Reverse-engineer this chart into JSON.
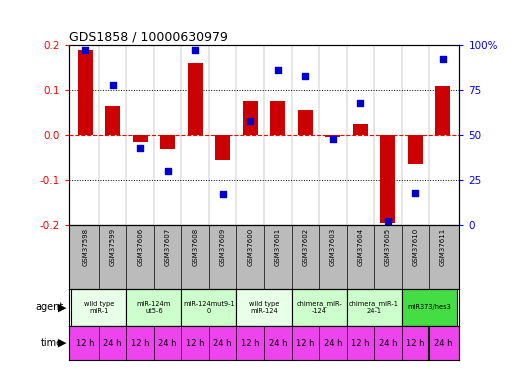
{
  "title": "GDS1858 / 10000630979",
  "samples": [
    "GSM37598",
    "GSM37599",
    "GSM37606",
    "GSM37607",
    "GSM37608",
    "GSM37609",
    "GSM37600",
    "GSM37601",
    "GSM37602",
    "GSM37603",
    "GSM37604",
    "GSM37605",
    "GSM37610",
    "GSM37611"
  ],
  "log10_ratio": [
    0.19,
    0.065,
    -0.015,
    -0.03,
    0.16,
    -0.055,
    0.075,
    0.075,
    0.055,
    -0.005,
    0.025,
    -0.195,
    -0.065,
    0.11
  ],
  "percentile": [
    97,
    78,
    43,
    30,
    97,
    17,
    58,
    86,
    83,
    48,
    68,
    2,
    18,
    92
  ],
  "ylim": [
    -0.2,
    0.2
  ],
  "yticks": [
    -0.2,
    -0.1,
    0.0,
    0.1,
    0.2
  ],
  "y2ticks": [
    0,
    25,
    50,
    75,
    100
  ],
  "y2labels": [
    "0",
    "25",
    "50",
    "75",
    "100%"
  ],
  "agents": [
    {
      "label": "wild type\nmiR-1",
      "cols": [
        0,
        1
      ],
      "color": "#e8ffe8"
    },
    {
      "label": "miR-124m\nut5-6",
      "cols": [
        2,
        3
      ],
      "color": "#ccffcc"
    },
    {
      "label": "miR-124mut9-1\n0",
      "cols": [
        4,
        5
      ],
      "color": "#ccffcc"
    },
    {
      "label": "wild type\nmiR-124",
      "cols": [
        6,
        7
      ],
      "color": "#e8ffe8"
    },
    {
      "label": "chimera_miR-\n-124",
      "cols": [
        8,
        9
      ],
      "color": "#ccffcc"
    },
    {
      "label": "chimera_miR-1\n24-1",
      "cols": [
        10,
        11
      ],
      "color": "#ccffcc"
    },
    {
      "label": "miR373/hes3",
      "cols": [
        12,
        13
      ],
      "color": "#44dd44"
    }
  ],
  "time_labels": [
    "12 h",
    "24 h",
    "12 h",
    "24 h",
    "12 h",
    "24 h",
    "12 h",
    "24 h",
    "12 h",
    "24 h",
    "12 h",
    "24 h",
    "12 h",
    "24 h"
  ],
  "bar_color": "#cc0000",
  "dot_color": "#0000cc",
  "bg_color": "#ffffff",
  "sample_bg": "#bbbbbb",
  "time_bg": "#ee44ee",
  "zero_line_color": "#ff0000",
  "dotted_color": "#000000"
}
